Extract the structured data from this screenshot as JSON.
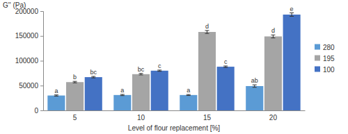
{
  "chart_data": {
    "type": "bar",
    "y_label": "G'' (Pa)",
    "x_label": "Level of flour replacement [%]",
    "categories": [
      "5",
      "10",
      "15",
      "20"
    ],
    "series": [
      {
        "name": "280",
        "color": "#5b9bd5",
        "values": [
          30000,
          31000,
          31000,
          49000
        ],
        "errors": [
          1200,
          1200,
          1000,
          2500
        ],
        "letters": [
          "a",
          "a",
          "a",
          "ab"
        ]
      },
      {
        "name": "195",
        "color": "#a5a5a5",
        "values": [
          57000,
          73000,
          158000,
          149000
        ],
        "errors": [
          1500,
          1500,
          3000,
          3000
        ],
        "letters": [
          "b",
          "bc",
          "d",
          "d"
        ]
      },
      {
        "name": "100",
        "color": "#4472c4",
        "values": [
          67000,
          80000,
          88000,
          193000
        ],
        "errors": [
          1500,
          1200,
          1500,
          3500
        ],
        "letters": [
          "bc",
          "c",
          "c",
          "e"
        ]
      }
    ],
    "ylim": [
      0,
      200000
    ],
    "yticks": [
      0,
      50000,
      100000,
      150000,
      200000
    ],
    "grid": false,
    "legend": "right"
  }
}
